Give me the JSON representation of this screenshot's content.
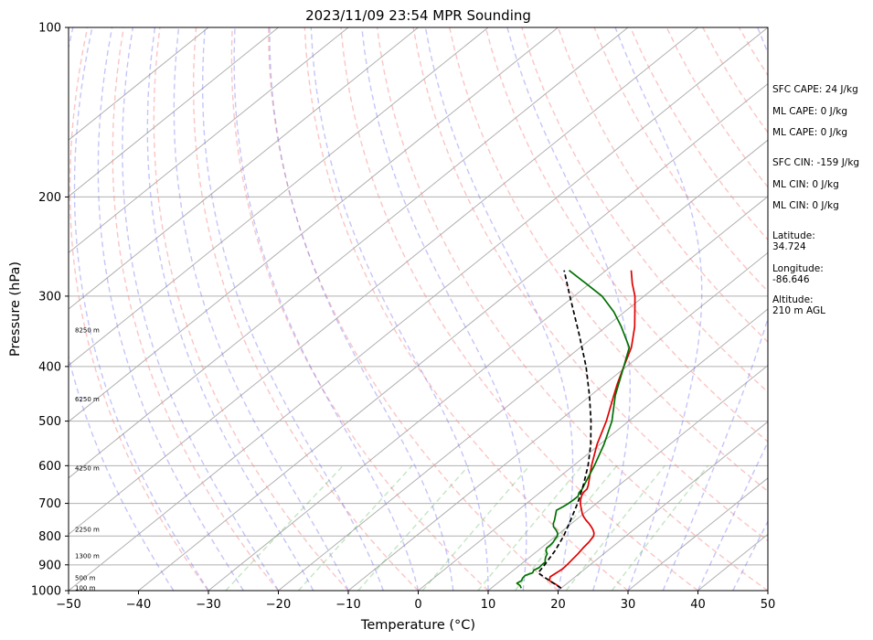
{
  "chart_data": {
    "type": "line",
    "subtype": "skew-t log-p sounding",
    "title": "2023/11/09 23:54 MPR Sounding",
    "xlabel": "Temperature (°C)",
    "ylabel": "Pressure (hPa)",
    "xlim": [
      -50,
      50
    ],
    "ylim": [
      1000,
      100
    ],
    "yscale": "log",
    "skew": 45,
    "grid": true,
    "x_ticks": [
      -50,
      -40,
      -30,
      -20,
      -10,
      0,
      10,
      20,
      30,
      40,
      50
    ],
    "y_ticks": [
      1000,
      900,
      800,
      700,
      600,
      500,
      400,
      300,
      200,
      100
    ],
    "x_tick_labels": [
      "−50",
      "−40",
      "−30",
      "−20",
      "−10",
      "0",
      "10",
      "20",
      "30",
      "40",
      "50"
    ],
    "y_tick_labels": [
      "1000",
      "900",
      "800",
      "700",
      "600",
      "500",
      "400",
      "300",
      "200",
      "100"
    ],
    "height_labels": [
      {
        "text": "100 m",
        "p": 990
      },
      {
        "text": "500 m",
        "p": 950
      },
      {
        "text": "1300 m",
        "p": 870
      },
      {
        "text": "2250 m",
        "p": 780
      },
      {
        "text": "4250 m",
        "p": 607
      },
      {
        "text": "6250 m",
        "p": 458
      },
      {
        "text": "8250 m",
        "p": 345
      }
    ],
    "series": [
      {
        "color": "#e00000",
        "style": "solid",
        "points": [
          [
            990,
            20.0
          ],
          [
            975,
            18.6
          ],
          [
            960,
            17.0
          ],
          [
            945,
            16.4
          ],
          [
            930,
            16.6
          ],
          [
            915,
            16.8
          ],
          [
            900,
            16.7
          ],
          [
            880,
            16.5
          ],
          [
            860,
            16.3
          ],
          [
            840,
            16.0
          ],
          [
            820,
            15.8
          ],
          [
            800,
            15.4
          ],
          [
            790,
            14.9
          ],
          [
            780,
            14.2
          ],
          [
            770,
            13.4
          ],
          [
            760,
            12.5
          ],
          [
            750,
            11.5
          ],
          [
            740,
            10.6
          ],
          [
            730,
            9.8
          ],
          [
            720,
            9.1
          ],
          [
            710,
            8.4
          ],
          [
            700,
            7.7
          ],
          [
            690,
            7.1
          ],
          [
            680,
            6.6
          ],
          [
            670,
            6.2
          ],
          [
            660,
            6.1
          ],
          [
            650,
            5.6
          ],
          [
            600,
            2.6
          ],
          [
            550,
            -0.4
          ],
          [
            500,
            -3.2
          ],
          [
            450,
            -6.7
          ],
          [
            430,
            -8.2
          ],
          [
            400,
            -10.4
          ],
          [
            370,
            -12.7
          ],
          [
            340,
            -15.9
          ],
          [
            320,
            -18.5
          ],
          [
            300,
            -21.3
          ],
          [
            285,
            -23.9
          ],
          [
            270,
            -26.4
          ]
        ]
      },
      {
        "color": "#007000",
        "style": "solid",
        "points": [
          [
            990,
            14.3
          ],
          [
            980,
            13.7
          ],
          [
            970,
            12.8
          ],
          [
            960,
            13.0
          ],
          [
            950,
            12.7
          ],
          [
            940,
            12.6
          ],
          [
            930,
            13.2
          ],
          [
            920,
            12.9
          ],
          [
            910,
            13.2
          ],
          [
            900,
            13.1
          ],
          [
            890,
            13.1
          ],
          [
            880,
            12.6
          ],
          [
            870,
            12.2
          ],
          [
            860,
            11.9
          ],
          [
            850,
            11.2
          ],
          [
            840,
            10.8
          ],
          [
            830,
            10.8
          ],
          [
            820,
            10.7
          ],
          [
            810,
            10.4
          ],
          [
            800,
            10.2
          ],
          [
            790,
            9.7
          ],
          [
            780,
            8.9
          ],
          [
            770,
            8.0
          ],
          [
            760,
            7.4
          ],
          [
            750,
            7.0
          ],
          [
            740,
            6.5
          ],
          [
            730,
            6.0
          ],
          [
            720,
            5.5
          ],
          [
            710,
            5.8
          ],
          [
            700,
            6.0
          ],
          [
            690,
            6.1
          ],
          [
            680,
            6.1
          ],
          [
            670,
            5.6
          ],
          [
            660,
            5.4
          ],
          [
            650,
            5.0
          ],
          [
            600,
            3.0
          ],
          [
            550,
            0.6
          ],
          [
            500,
            -2.4
          ],
          [
            450,
            -6.5
          ],
          [
            430,
            -8.0
          ],
          [
            400,
            -10.4
          ],
          [
            370,
            -13.0
          ],
          [
            340,
            -17.8
          ],
          [
            320,
            -21.5
          ],
          [
            300,
            -26.0
          ],
          [
            285,
            -30.5
          ],
          [
            270,
            -35.3
          ]
        ]
      },
      {
        "color": "#000000",
        "style": "dashed",
        "points": [
          [
            990,
            20.0
          ],
          [
            960,
            17.0
          ],
          [
            930,
            14.0
          ],
          [
            900,
            13.5
          ],
          [
            850,
            12.5
          ],
          [
            800,
            11.1
          ],
          [
            750,
            9.3
          ],
          [
            700,
            7.3
          ],
          [
            650,
            4.9
          ],
          [
            600,
            2.1
          ],
          [
            550,
            -1.3
          ],
          [
            500,
            -5.4
          ],
          [
            450,
            -10.2
          ],
          [
            400,
            -15.8
          ],
          [
            350,
            -22.6
          ],
          [
            300,
            -30.6
          ],
          [
            270,
            -36.0
          ]
        ]
      }
    ]
  },
  "side_panel": {
    "sfc_cape": "SFC CAPE: 24 J/kg",
    "ml_cape_1": "ML CAPE: 0 J/kg",
    "ml_cape_2": "ML CAPE: 0 J/kg",
    "sfc_cin": "SFC CIN: -159 J/kg",
    "ml_cin_1": "ML CIN: 0 J/kg",
    "ml_cin_2": "ML CIN: 0 J/kg",
    "latitude_label": "Latitude:",
    "latitude_value": "34.724",
    "longitude_label": "Longitude:",
    "longitude_value": "-86.646",
    "altitude_label": "Altitude:",
    "altitude_value": "210 m AGL"
  }
}
